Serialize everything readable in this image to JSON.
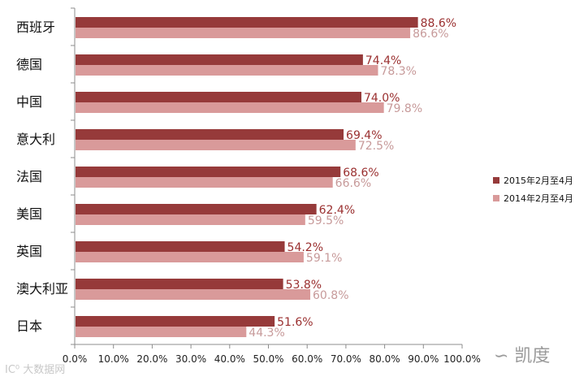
{
  "chart_data": {
    "type": "bar",
    "orientation": "horizontal",
    "categories": [
      "西班牙",
      "德国",
      "中国",
      "意大利",
      "法国",
      "美国",
      "英国",
      "澳大利亚",
      "日本"
    ],
    "series": [
      {
        "name": "2015年2月至4月",
        "values": [
          88.6,
          74.4,
          74.0,
          69.4,
          68.6,
          62.4,
          54.2,
          53.8,
          51.6
        ],
        "color": "#963a3a",
        "label_color": "#9a2f2f"
      },
      {
        "name": "2014年2月至4月",
        "values": [
          86.6,
          78.3,
          79.8,
          72.5,
          66.6,
          59.5,
          59.1,
          60.8,
          44.3
        ],
        "color": "#d99a9a",
        "label_color": "#c79a9a"
      }
    ],
    "xlim": [
      0,
      100
    ],
    "x_ticks": [
      "0.0%",
      "10.0%",
      "20.0%",
      "30.0%",
      "40.0%",
      "50.0%",
      "60.0%",
      "70.0%",
      "80.0%",
      "90.0%",
      "100.0%"
    ],
    "legend_position": "right",
    "title": "",
    "xlabel": "",
    "ylabel": ""
  },
  "watermarks": {
    "left": "IC⁰ 大数据网",
    "right": "∽ 凯度"
  }
}
